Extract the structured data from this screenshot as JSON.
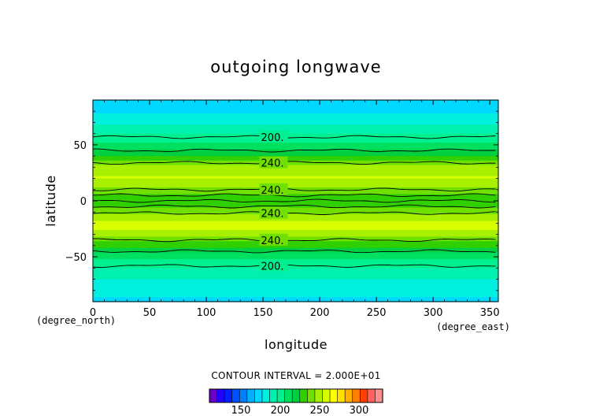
{
  "chart_data": {
    "type": "heatmap",
    "title": "outgoing longwave",
    "xlabel": "longitude",
    "ylabel": "latitude",
    "x_unit": "(degree_east)",
    "y_unit": "(degree_north)",
    "xlim": [
      0,
      357.5
    ],
    "ylim": [
      -90,
      90
    ],
    "x_ticks": [
      "0",
      "50",
      "100",
      "150",
      "200",
      "250",
      "300",
      "350"
    ],
    "x_tick_values": [
      0,
      50,
      100,
      150,
      200,
      250,
      300,
      350
    ],
    "y_ticks": [
      "50",
      "0",
      "−50"
    ],
    "y_tick_values": [
      50,
      0,
      -50
    ],
    "zonal_profile": {
      "lat": [
        90,
        80,
        75,
        70,
        65,
        60,
        55,
        50,
        45,
        40,
        35,
        30,
        25,
        20,
        15,
        10,
        5,
        0,
        -5,
        -10,
        -15,
        -20,
        -25,
        -30,
        -35,
        -40,
        -45,
        -50,
        -55,
        -60,
        -65,
        -70,
        -75,
        -80,
        -90
      ],
      "olr": [
        176,
        176,
        180,
        185,
        192,
        197,
        202,
        208,
        216,
        226,
        236,
        246,
        252,
        254,
        248,
        238,
        232,
        230,
        234,
        242,
        250,
        256,
        254,
        248,
        238,
        228,
        216,
        208,
        201,
        196,
        191,
        186,
        182,
        178,
        176
      ]
    },
    "contour_interval": "2.000E+01",
    "contour_labels": [
      {
        "text": "200.",
        "lon": 117,
        "lat": 57
      },
      {
        "text": "240.",
        "lon": 117,
        "lat": 34
      },
      {
        "text": "240.",
        "lon": 117,
        "lat": 10
      },
      {
        "text": "240.",
        "lon": 117,
        "lat": -11
      },
      {
        "text": "240.",
        "lon": 117,
        "lat": -35
      },
      {
        "text": "200.",
        "lon": 117,
        "lat": -58
      }
    ],
    "contour_lines_lat": [
      57,
      45,
      34,
      10,
      5,
      0,
      -5,
      -11,
      -35,
      -45,
      -58
    ],
    "colorbar": {
      "label": "CONTOUR INTERVAL = 2.000E+01",
      "tick_labels": [
        "150",
        "200",
        "250",
        "300"
      ],
      "tick_values": [
        150,
        200,
        250,
        300
      ],
      "vmin": 110,
      "vmax": 330,
      "colors": [
        "#6a00c8",
        "#2200ff",
        "#0020ff",
        "#0050ff",
        "#0080ff",
        "#00b0ff",
        "#00d8ff",
        "#00f0e0",
        "#00f0b0",
        "#00f090",
        "#00e060",
        "#00d040",
        "#30d000",
        "#70e000",
        "#a8f000",
        "#d8ff00",
        "#ffff00",
        "#ffe000",
        "#ffb000",
        "#ff8000",
        "#ff4000",
        "#ff6060",
        "#ff9090"
      ]
    },
    "grid": false
  }
}
